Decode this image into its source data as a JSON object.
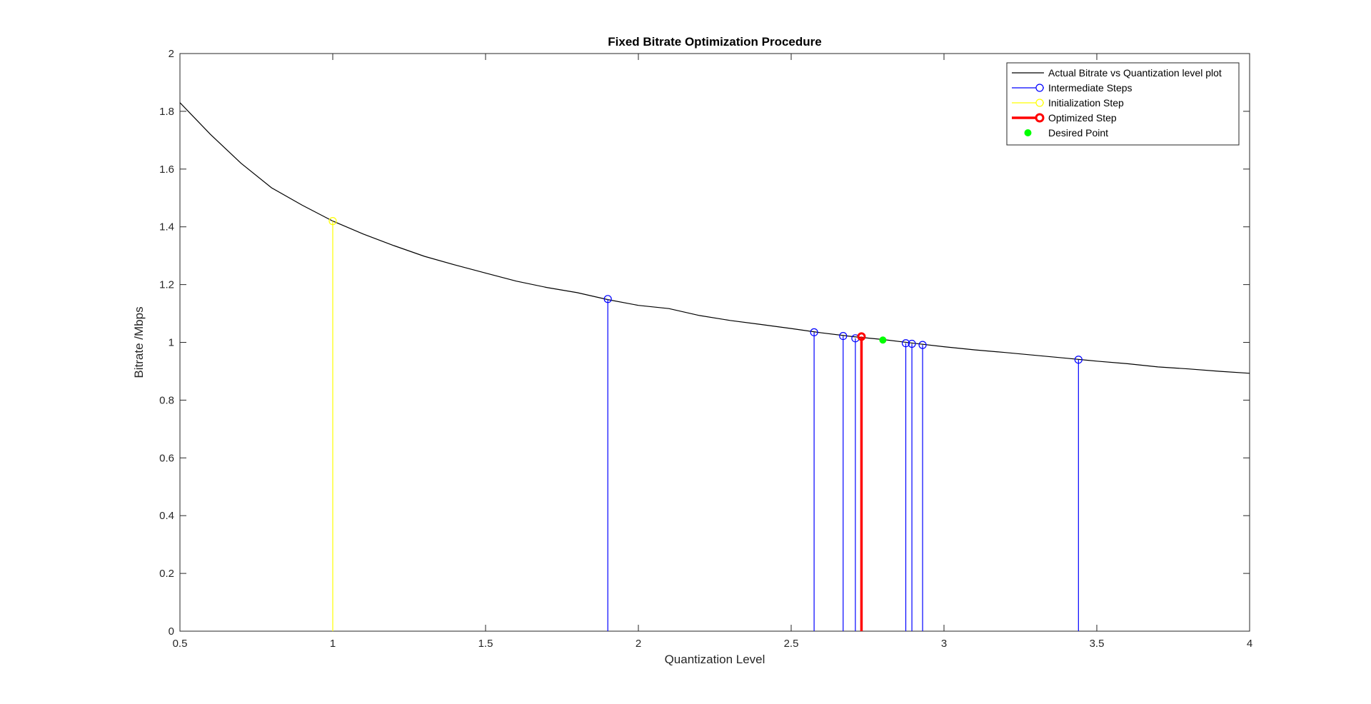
{
  "chart_data": {
    "type": "line",
    "title": "Fixed Bitrate Optimization Procedure",
    "xlabel": "Quantization Level",
    "ylabel": "Bitrate /Mbps",
    "xlim": [
      0.5,
      4
    ],
    "ylim": [
      0,
      2
    ],
    "xticks": [
      0.5,
      1,
      1.5,
      2,
      2.5,
      3,
      3.5,
      4
    ],
    "yticks": [
      0,
      0.2,
      0.4,
      0.6,
      0.8,
      1,
      1.2,
      1.4,
      1.6,
      1.8,
      2
    ],
    "xtick_labels": [
      "0.5",
      "1",
      "1.5",
      "2",
      "2.5",
      "3",
      "3.5",
      "4"
    ],
    "ytick_labels": [
      "0",
      "0.2",
      "0.4",
      "0.6",
      "0.8",
      "1",
      "1.2",
      "1.4",
      "1.6",
      "1.8",
      "2"
    ],
    "grid": false,
    "legend_position": "top-right",
    "series": [
      {
        "name": "Actual Bitrate vs Quantization level plot",
        "kind": "line",
        "color": "#000000",
        "x": [
          0.5,
          0.6,
          0.7,
          0.8,
          0.9,
          1.0,
          1.1,
          1.2,
          1.3,
          1.4,
          1.5,
          1.6,
          1.7,
          1.8,
          1.9,
          2.0,
          2.1,
          2.2,
          2.3,
          2.4,
          2.5,
          2.6,
          2.7,
          2.8,
          2.9,
          3.0,
          3.1,
          3.2,
          3.3,
          3.4,
          3.5,
          3.6,
          3.7,
          3.8,
          3.9,
          4.0
        ],
        "y": [
          1.83,
          1.72,
          1.62,
          1.535,
          1.475,
          1.42,
          1.375,
          1.335,
          1.298,
          1.268,
          1.24,
          1.212,
          1.19,
          1.172,
          1.148,
          1.128,
          1.117,
          1.093,
          1.076,
          1.062,
          1.048,
          1.033,
          1.02,
          1.01,
          0.997,
          0.985,
          0.974,
          0.965,
          0.955,
          0.945,
          0.935,
          0.926,
          0.915,
          0.908,
          0.9,
          0.893
        ]
      },
      {
        "name": "Intermediate Steps",
        "kind": "stem",
        "color": "#0000ff",
        "x": [
          1.9,
          2.575,
          2.67,
          2.71,
          2.875,
          2.895,
          2.93,
          3.44
        ],
        "y": [
          1.15,
          1.035,
          1.022,
          1.014,
          0.997,
          0.995,
          0.991,
          0.94
        ]
      },
      {
        "name": "Initialization Step",
        "kind": "stem",
        "color": "#ffff00",
        "x": [
          1.0
        ],
        "y": [
          1.42
        ]
      },
      {
        "name": "Optimized Step",
        "kind": "stem",
        "color": "#ff0000",
        "x": [
          2.73
        ],
        "y": [
          1.02
        ]
      },
      {
        "name": "Desired Point",
        "kind": "point",
        "color": "#00ff00",
        "x": [
          2.8
        ],
        "y": [
          1.008
        ]
      }
    ]
  }
}
